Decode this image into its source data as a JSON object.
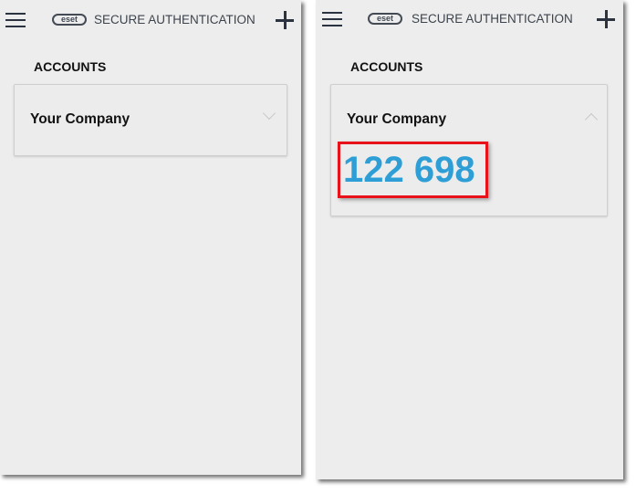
{
  "app": {
    "logo": "eset",
    "title": "SECURE AUTHENTICATION",
    "menu_icon": "hamburger-icon",
    "add_icon": "plus-icon"
  },
  "collapsed": {
    "section": "ACCOUNTS",
    "account": "Your Company",
    "chevron": "chevron-down-icon"
  },
  "expanded": {
    "section": "ACCOUNTS",
    "account": "Your Company",
    "chevron": "chevron-up-icon",
    "otp": "122 698",
    "highlight_color": "#e8131a",
    "otp_color": "#2d9fd6"
  }
}
